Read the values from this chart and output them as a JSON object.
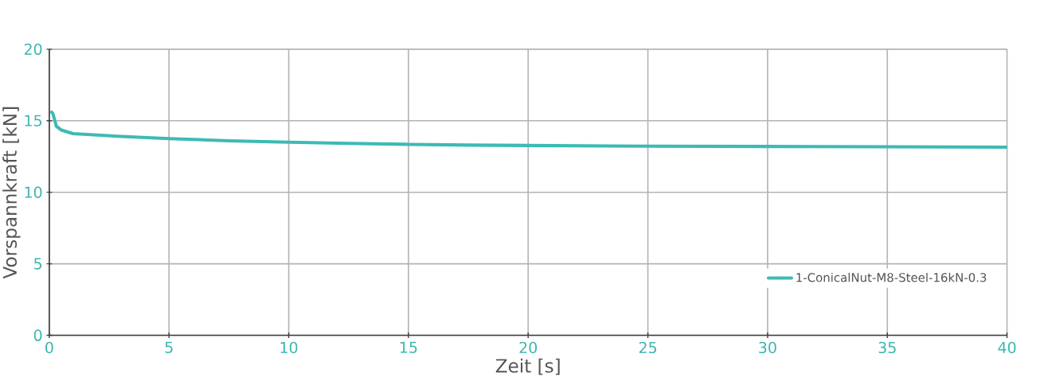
{
  "chart_data": {
    "type": "line",
    "xlabel": "Zeit [s]",
    "ylabel": "Vorspannkraft [kN]",
    "xlim": [
      0,
      40
    ],
    "ylim": [
      0,
      20
    ],
    "xticks": [
      0,
      5,
      10,
      15,
      20,
      25,
      30,
      35,
      40
    ],
    "yticks": [
      0,
      5,
      10,
      15,
      20
    ],
    "grid": true,
    "legend": "bottom right",
    "series": [
      {
        "name": "1-ConicalNut-M8-Steel-16kN-0.3",
        "color": "#3dbab4",
        "x": [
          0.1,
          0.15,
          0.2,
          0.3,
          0.5,
          1,
          2,
          3,
          5,
          7.5,
          10,
          12.5,
          15,
          17.5,
          20,
          25,
          30,
          35,
          40
        ],
        "values": [
          15.6,
          15.5,
          15.2,
          14.6,
          14.35,
          14.1,
          14.0,
          13.9,
          13.75,
          13.6,
          13.5,
          13.42,
          13.35,
          13.3,
          13.27,
          13.22,
          13.2,
          13.18,
          13.15
        ]
      }
    ]
  }
}
